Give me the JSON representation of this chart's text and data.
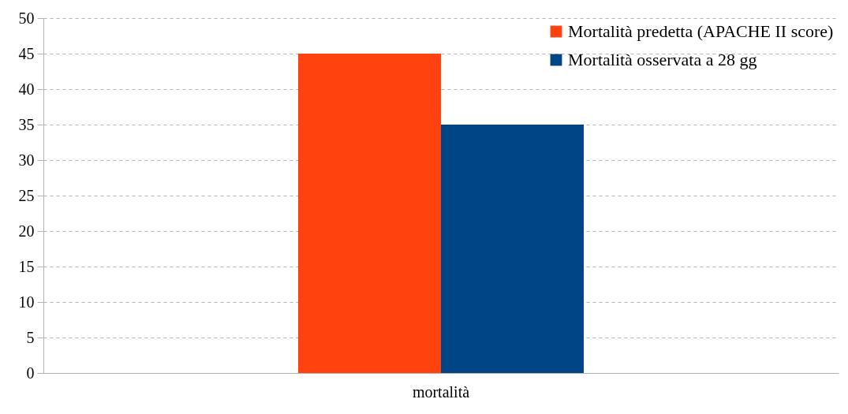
{
  "chart_data": {
    "type": "bar",
    "categories": [
      "mortalità"
    ],
    "series": [
      {
        "name": "Mortalità predetta (APACHE II score)",
        "color": "#ff420e",
        "values": [
          45
        ]
      },
      {
        "name": "Mortalità osservata a 28 gg",
        "color": "#004586",
        "values": [
          35
        ]
      }
    ],
    "ylim": [
      0,
      50
    ],
    "yticks": [
      0,
      5,
      10,
      15,
      20,
      25,
      30,
      35,
      40,
      45,
      50
    ],
    "grid": "y",
    "legend": "top right"
  }
}
